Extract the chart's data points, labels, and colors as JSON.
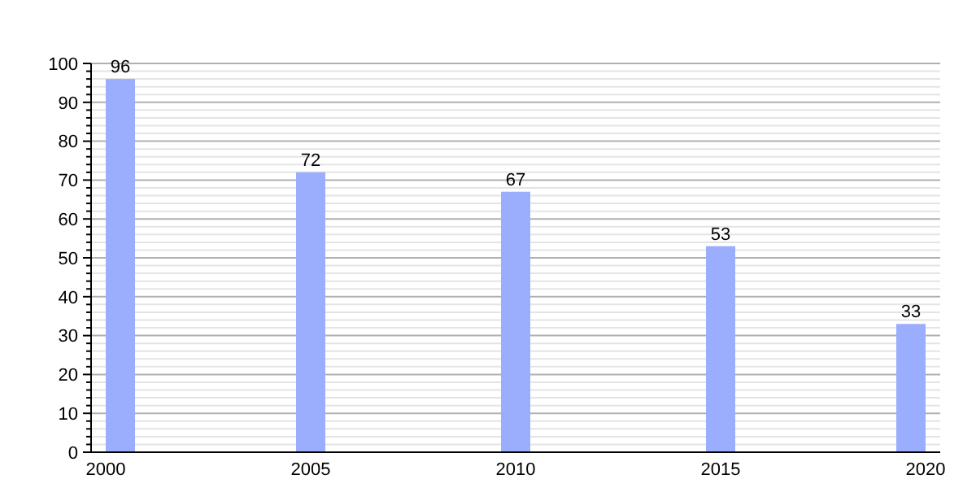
{
  "chart_data": {
    "type": "bar",
    "x": [
      2000,
      2005,
      2010,
      2015,
      2020
    ],
    "values": [
      96,
      72,
      67,
      53,
      33
    ],
    "color": "#9aaefd",
    "data_labels": true,
    "grid": "y",
    "xlim": [
      2000,
      2020
    ],
    "xticks": [
      2000,
      2005,
      2010,
      2015,
      2020
    ],
    "ylim": [
      0,
      100
    ],
    "yticks": [
      0,
      {
        "value": 2,
        "label": null
      },
      {
        "value": 4,
        "label": null
      },
      {
        "value": 6,
        "label": null
      },
      {
        "value": 8,
        "label": null
      },
      10,
      {
        "value": 12,
        "label": null
      },
      {
        "value": 14,
        "label": null
      },
      {
        "value": 16,
        "label": null
      },
      {
        "value": 18,
        "label": null
      },
      20,
      {
        "value": 22,
        "label": null
      },
      {
        "value": 24,
        "label": null
      },
      {
        "value": 26,
        "label": null
      },
      {
        "value": 28,
        "label": null
      },
      30,
      {
        "value": 32,
        "label": null
      },
      {
        "value": 34,
        "label": null
      },
      {
        "value": 36,
        "label": null
      },
      {
        "value": 38,
        "label": null
      },
      40,
      {
        "value": 42,
        "label": null
      },
      {
        "value": 44,
        "label": null
      },
      {
        "value": 46,
        "label": null
      },
      {
        "value": 48,
        "label": null
      },
      50,
      {
        "value": 52,
        "label": null
      },
      {
        "value": 54,
        "label": null
      },
      {
        "value": 56,
        "label": null
      },
      {
        "value": 58,
        "label": null
      },
      60,
      {
        "value": 62,
        "label": null
      },
      {
        "value": 64,
        "label": null
      },
      {
        "value": 66,
        "label": null
      },
      {
        "value": 68,
        "label": null
      },
      70,
      {
        "value": 72,
        "label": null
      },
      {
        "value": 74,
        "label": null
      },
      {
        "value": 76,
        "label": null
      },
      {
        "value": 78,
        "label": null
      },
      80,
      {
        "value": 82,
        "label": null
      },
      {
        "value": 84,
        "label": null
      },
      {
        "value": 86,
        "label": null
      },
      {
        "value": 88,
        "label": null
      },
      90,
      {
        "value": 92,
        "label": null
      },
      {
        "value": 94,
        "label": null
      },
      {
        "value": 96,
        "label": null
      },
      {
        "value": 98,
        "label": null
      },
      100
    ]
  }
}
